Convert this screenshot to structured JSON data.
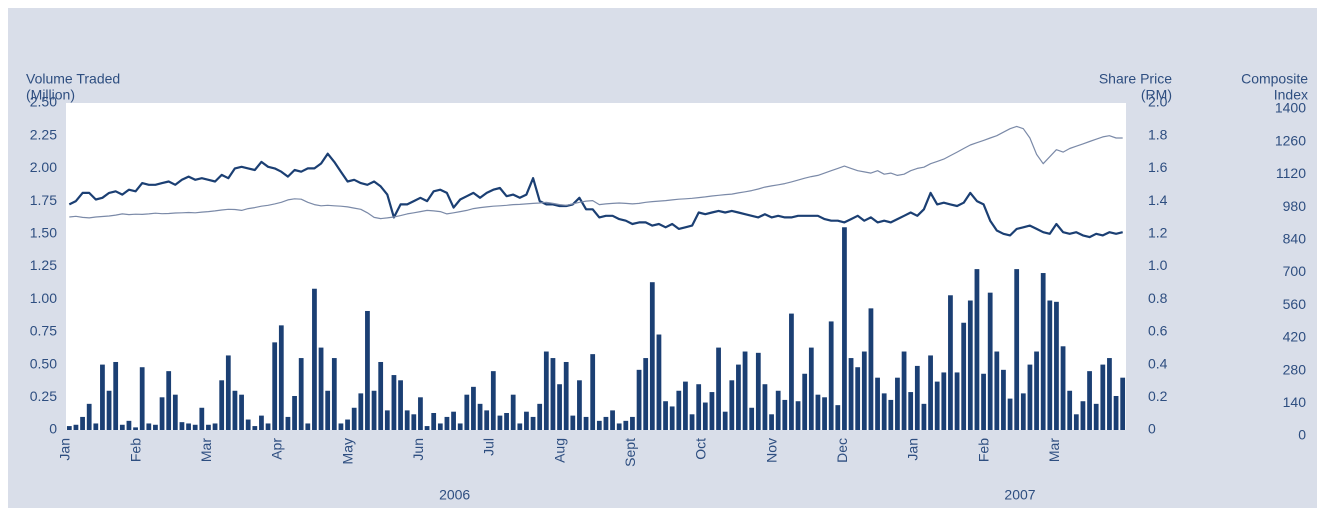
{
  "chart_data": {
    "type": "bar",
    "y_label": [
      "Volume Traded",
      "(Million)"
    ],
    "y2_label": [
      "Share Price",
      "(RM)"
    ],
    "y3_label": [
      "Composite",
      "Index"
    ],
    "xlim": [
      0,
      15
    ],
    "xticks": [
      {
        "value": 0,
        "label": "Jan"
      },
      {
        "value": 1,
        "label": "Feb"
      },
      {
        "value": 2,
        "label": "Mar"
      },
      {
        "value": 3,
        "label": "Apr"
      },
      {
        "value": 4,
        "label": "May"
      },
      {
        "value": 5,
        "label": "Jun"
      },
      {
        "value": 6,
        "label": "Jul"
      },
      {
        "value": 7,
        "label": "Aug"
      },
      {
        "value": 8,
        "label": "Sept"
      },
      {
        "value": 9,
        "label": "Oct"
      },
      {
        "value": 10,
        "label": "Nov"
      },
      {
        "value": 11,
        "label": "Dec"
      },
      {
        "value": 12,
        "label": "Jan"
      },
      {
        "value": 13,
        "label": "Feb"
      },
      {
        "value": 14,
        "label": "Mar"
      }
    ],
    "year_labels": [
      {
        "value": 5.5,
        "label": "2006"
      },
      {
        "value": 13.5,
        "label": "2007"
      }
    ],
    "ylim": [
      0,
      2.5
    ],
    "yticks": [
      0,
      0.25,
      {
        "value": 0.5,
        "label": "0.50"
      },
      0.75,
      {
        "value": 1,
        "label": "1.00"
      },
      1.25,
      {
        "value": 1.5,
        "label": "1.50"
      },
      1.75,
      {
        "value": 2,
        "label": "2.00"
      },
      2.25,
      {
        "value": 2.5,
        "label": "2.50"
      }
    ],
    "y2lim": [
      0,
      2
    ],
    "y2ticks": [
      0,
      0.2,
      0.4,
      0.6,
      0.8,
      {
        "value": 1,
        "label": "1.0"
      },
      1.2,
      1.4,
      1.6,
      1.8,
      {
        "value": 2,
        "label": "2.0"
      }
    ],
    "y3lim": [
      0,
      1400
    ],
    "y3ticks": [
      0,
      140,
      280,
      420,
      560,
      700,
      840,
      980,
      1120,
      1260,
      1400
    ],
    "series": [
      {
        "type": "bar",
        "axis": "y",
        "color": "#1b3f73",
        "values": [
          0.03,
          0.04,
          0.1,
          0.2,
          0.05,
          0.5,
          0.3,
          0.52,
          0.04,
          0.07,
          0.02,
          0.48,
          0.05,
          0.04,
          0.25,
          0.45,
          0.27,
          0.06,
          0.05,
          0.04,
          0.17,
          0.04,
          0.05,
          0.38,
          0.57,
          0.3,
          0.27,
          0.08,
          0.03,
          0.11,
          0.05,
          0.67,
          0.8,
          0.1,
          0.26,
          0.55,
          0.05,
          1.08,
          0.63,
          0.3,
          0.55,
          0.05,
          0.08,
          0.17,
          0.28,
          0.91,
          0.3,
          0.52,
          0.15,
          0.42,
          0.38,
          0.15,
          0.12,
          0.25,
          0.03,
          0.13,
          0.05,
          0.1,
          0.14,
          0.05,
          0.27,
          0.33,
          0.2,
          0.15,
          0.45,
          0.11,
          0.13,
          0.27,
          0.05,
          0.14,
          0.1,
          0.2,
          0.6,
          0.55,
          0.35,
          0.52,
          0.11,
          0.38,
          0.1,
          0.58,
          0.07,
          0.1,
          0.15,
          0.05,
          0.07,
          0.1,
          0.46,
          0.55,
          1.13,
          0.73,
          0.22,
          0.18,
          0.3,
          0.37,
          0.12,
          0.35,
          0.21,
          0.29,
          0.63,
          0.14,
          0.38,
          0.5,
          0.6,
          0.17,
          0.59,
          0.35,
          0.12,
          0.3,
          0.23,
          0.89,
          0.22,
          0.43,
          0.63,
          0.27,
          0.25,
          0.83,
          0.19,
          1.55,
          0.55,
          0.48,
          0.6,
          0.93,
          0.4,
          0.28,
          0.23,
          0.4,
          0.6,
          0.29,
          0.49,
          0.2,
          0.57,
          0.37,
          0.44,
          1.03,
          0.44,
          0.82,
          0.99,
          1.23,
          0.43,
          1.05,
          0.6,
          0.46,
          0.24,
          1.23,
          0.28,
          0.5,
          0.6,
          1.2,
          0.99,
          0.98,
          0.64,
          0.3,
          0.12,
          0.22,
          0.45,
          0.2,
          0.5,
          0.55,
          0.26,
          0.4
        ]
      },
      {
        "type": "line",
        "axis": "y2",
        "color": "#1b3f73",
        "values": [
          1.38,
          1.4,
          1.45,
          1.45,
          1.41,
          1.42,
          1.45,
          1.46,
          1.44,
          1.47,
          1.46,
          1.51,
          1.5,
          1.5,
          1.51,
          1.52,
          1.5,
          1.53,
          1.55,
          1.53,
          1.54,
          1.53,
          1.52,
          1.56,
          1.54,
          1.6,
          1.61,
          1.6,
          1.59,
          1.64,
          1.61,
          1.6,
          1.58,
          1.55,
          1.59,
          1.58,
          1.6,
          1.6,
          1.63,
          1.69,
          1.64,
          1.58,
          1.52,
          1.53,
          1.51,
          1.5,
          1.52,
          1.49,
          1.44,
          1.3,
          1.38,
          1.38,
          1.4,
          1.42,
          1.4,
          1.46,
          1.47,
          1.45,
          1.36,
          1.41,
          1.43,
          1.45,
          1.42,
          1.45,
          1.47,
          1.48,
          1.43,
          1.44,
          1.42,
          1.44,
          1.54,
          1.4,
          1.38,
          1.38,
          1.37,
          1.37,
          1.38,
          1.42,
          1.35,
          1.35,
          1.3,
          1.31,
          1.31,
          1.29,
          1.28,
          1.26,
          1.27,
          1.27,
          1.25,
          1.26,
          1.24,
          1.26,
          1.23,
          1.24,
          1.25,
          1.33,
          1.32,
          1.33,
          1.34,
          1.33,
          1.34,
          1.33,
          1.32,
          1.31,
          1.3,
          1.32,
          1.3,
          1.31,
          1.3,
          1.3,
          1.31,
          1.31,
          1.31,
          1.31,
          1.29,
          1.28,
          1.28,
          1.27,
          1.29,
          1.31,
          1.28,
          1.3,
          1.27,
          1.28,
          1.27,
          1.29,
          1.31,
          1.33,
          1.31,
          1.35,
          1.45,
          1.38,
          1.39,
          1.38,
          1.37,
          1.39,
          1.45,
          1.4,
          1.38,
          1.28,
          1.22,
          1.2,
          1.19,
          1.23,
          1.24,
          1.25,
          1.23,
          1.21,
          1.2,
          1.26,
          1.21,
          1.2,
          1.21,
          1.19,
          1.18,
          1.2,
          1.19,
          1.21,
          1.2,
          1.21
        ]
      },
      {
        "type": "line",
        "axis": "y3",
        "color": "#7b8aa8",
        "values": [
          912,
          915,
          910,
          908,
          912,
          914,
          916,
          920,
          925,
          922,
          924,
          923,
          925,
          928,
          926,
          927,
          929,
          930,
          931,
          930,
          933,
          935,
          938,
          942,
          945,
          944,
          940,
          948,
          952,
          958,
          962,
          968,
          975,
          985,
          990,
          988,
          975,
          965,
          960,
          962,
          960,
          958,
          955,
          950,
          945,
          930,
          910,
          905,
          908,
          912,
          918,
          925,
          930,
          935,
          940,
          938,
          935,
          925,
          930,
          935,
          940,
          948,
          952,
          955,
          958,
          960,
          962,
          965,
          966,
          968,
          970,
          972,
          975,
          970,
          965,
          962,
          968,
          975,
          980,
          982,
          965,
          968,
          970,
          972,
          970,
          968,
          970,
          975,
          978,
          980,
          982,
          985,
          988,
          990,
          992,
          995,
          998,
          1002,
          1005,
          1008,
          1010,
          1015,
          1020,
          1025,
          1032,
          1040,
          1045,
          1050,
          1055,
          1062,
          1070,
          1078,
          1085,
          1090,
          1100,
          1110,
          1120,
          1130,
          1120,
          1110,
          1105,
          1100,
          1110,
          1095,
          1100,
          1090,
          1095,
          1110,
          1120,
          1125,
          1140,
          1150,
          1160,
          1175,
          1190,
          1205,
          1220,
          1230,
          1240,
          1250,
          1260,
          1275,
          1290,
          1300,
          1290,
          1250,
          1180,
          1140,
          1170,
          1200,
          1190,
          1205,
          1215,
          1225,
          1235,
          1245,
          1255,
          1260,
          1250,
          1250
        ]
      }
    ]
  }
}
